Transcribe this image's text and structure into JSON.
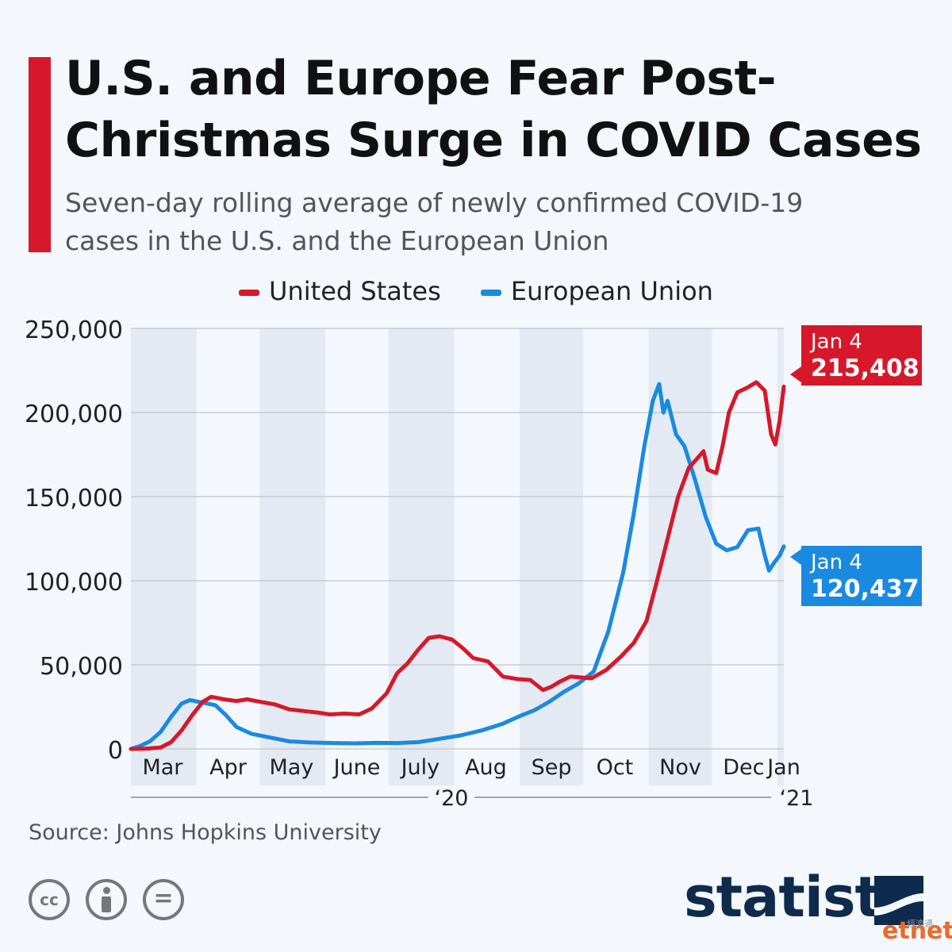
{
  "header": {
    "title": "U.S. and Europe Fear Post-Christmas Surge in COVID Cases",
    "subtitle": "Seven-day rolling average of newly confirmed COVID-19\ncases in the U.S. and the European Union"
  },
  "colors": {
    "us": "#d7182a",
    "eu": "#1a8ae0",
    "accent": "#d7182a",
    "brand": "#0e2a4c"
  },
  "chart_data": {
    "type": "line",
    "title": "U.S. and Europe Fear Post-Christmas Surge in COVID Cases",
    "subtitle": "Seven-day rolling average of newly confirmed COVID-19 cases in the U.S. and the European Union",
    "legend_position": "top-center",
    "grid": true,
    "x_range": [
      "2020-03-01",
      "2021-01-04"
    ],
    "ylim": [
      0,
      250000
    ],
    "y_ticks": [
      "0",
      "50,000",
      "100,000",
      "150,000",
      "200,000",
      "250,000"
    ],
    "y_tick_values": [
      0,
      50000,
      100000,
      150000,
      200000,
      250000
    ],
    "x_tick_labels": [
      "Mar",
      "Apr",
      "May",
      "June",
      "July",
      "Aug",
      "Sep",
      "Oct",
      "Nov",
      "Dec",
      "Jan"
    ],
    "x_tick_dates": [
      "2020-03-16",
      "2020-04-16",
      "2020-05-16",
      "2020-06-16",
      "2020-07-16",
      "2020-08-16",
      "2020-09-16",
      "2020-10-16",
      "2020-11-16",
      "2020-12-16",
      "2021-01-04"
    ],
    "year_labels": [
      "‘20",
      "‘21"
    ],
    "series": [
      {
        "name": "United States",
        "points": [
          [
            "2020-03-01",
            0
          ],
          [
            "2020-03-08",
            100
          ],
          [
            "2020-03-15",
            800
          ],
          [
            "2020-03-20",
            4000
          ],
          [
            "2020-03-25",
            11000
          ],
          [
            "2020-03-30",
            20000
          ],
          [
            "2020-04-04",
            28000
          ],
          [
            "2020-04-08",
            31000
          ],
          [
            "2020-04-14",
            29500
          ],
          [
            "2020-04-20",
            28500
          ],
          [
            "2020-04-25",
            29500
          ],
          [
            "2020-05-01",
            28000
          ],
          [
            "2020-05-08",
            26500
          ],
          [
            "2020-05-15",
            23500
          ],
          [
            "2020-05-22",
            22500
          ],
          [
            "2020-05-29",
            21500
          ],
          [
            "2020-06-03",
            20500
          ],
          [
            "2020-06-10",
            21000
          ],
          [
            "2020-06-17",
            20500
          ],
          [
            "2020-06-23",
            24000
          ],
          [
            "2020-06-30",
            33000
          ],
          [
            "2020-07-05",
            45000
          ],
          [
            "2020-07-10",
            51000
          ],
          [
            "2020-07-15",
            59000
          ],
          [
            "2020-07-20",
            66000
          ],
          [
            "2020-07-25",
            67000
          ],
          [
            "2020-07-31",
            65000
          ],
          [
            "2020-08-05",
            60000
          ],
          [
            "2020-08-10",
            54000
          ],
          [
            "2020-08-17",
            52000
          ],
          [
            "2020-08-24",
            43000
          ],
          [
            "2020-08-31",
            41500
          ],
          [
            "2020-09-06",
            41000
          ],
          [
            "2020-09-12",
            35000
          ],
          [
            "2020-09-16",
            37000
          ],
          [
            "2020-09-20",
            40000
          ],
          [
            "2020-09-25",
            43000
          ],
          [
            "2020-09-30",
            42500
          ],
          [
            "2020-10-05",
            42000
          ],
          [
            "2020-10-12",
            47000
          ],
          [
            "2020-10-19",
            55000
          ],
          [
            "2020-10-25",
            63000
          ],
          [
            "2020-10-31",
            76000
          ],
          [
            "2020-11-05",
            100000
          ],
          [
            "2020-11-10",
            125000
          ],
          [
            "2020-11-15",
            150000
          ],
          [
            "2020-11-20",
            167000
          ],
          [
            "2020-11-27",
            177000
          ],
          [
            "2020-11-29",
            166000
          ],
          [
            "2020-12-03",
            164000
          ],
          [
            "2020-12-06",
            180000
          ],
          [
            "2020-12-09",
            200000
          ],
          [
            "2020-12-13",
            212000
          ],
          [
            "2020-12-18",
            215000
          ],
          [
            "2020-12-22",
            218000
          ],
          [
            "2020-12-26",
            213000
          ],
          [
            "2020-12-29",
            187000
          ],
          [
            "2020-12-31",
            181000
          ],
          [
            "2021-01-02",
            195000
          ],
          [
            "2021-01-04",
            215408
          ]
        ],
        "callout": {
          "date_label": "Jan 4",
          "value_label": "215,408"
        }
      },
      {
        "name": "European Union",
        "points": [
          [
            "2020-03-01",
            0
          ],
          [
            "2020-03-05",
            1500
          ],
          [
            "2020-03-10",
            4500
          ],
          [
            "2020-03-15",
            10000
          ],
          [
            "2020-03-20",
            19000
          ],
          [
            "2020-03-25",
            27000
          ],
          [
            "2020-03-29",
            29000
          ],
          [
            "2020-04-04",
            27500
          ],
          [
            "2020-04-10",
            26000
          ],
          [
            "2020-04-15",
            20000
          ],
          [
            "2020-04-20",
            13000
          ],
          [
            "2020-04-27",
            9000
          ],
          [
            "2020-05-05",
            7000
          ],
          [
            "2020-05-15",
            4500
          ],
          [
            "2020-05-25",
            3800
          ],
          [
            "2020-06-05",
            3500
          ],
          [
            "2020-06-15",
            3300
          ],
          [
            "2020-06-25",
            3600
          ],
          [
            "2020-07-05",
            3500
          ],
          [
            "2020-07-15",
            4000
          ],
          [
            "2020-07-25",
            6000
          ],
          [
            "2020-08-04",
            8000
          ],
          [
            "2020-08-14",
            11000
          ],
          [
            "2020-08-24",
            15000
          ],
          [
            "2020-09-01",
            19500
          ],
          [
            "2020-09-08",
            23000
          ],
          [
            "2020-09-15",
            28000
          ],
          [
            "2020-09-22",
            34000
          ],
          [
            "2020-09-29",
            39000
          ],
          [
            "2020-10-06",
            46000
          ],
          [
            "2020-10-13",
            70000
          ],
          [
            "2020-10-20",
            105000
          ],
          [
            "2020-10-25",
            140000
          ],
          [
            "2020-10-30",
            180000
          ],
          [
            "2020-11-03",
            207000
          ],
          [
            "2020-11-06",
            217000
          ],
          [
            "2020-11-08",
            200000
          ],
          [
            "2020-11-10",
            207000
          ],
          [
            "2020-11-14",
            187000
          ],
          [
            "2020-11-18",
            180000
          ],
          [
            "2020-11-23",
            160000
          ],
          [
            "2020-11-28",
            138000
          ],
          [
            "2020-12-03",
            122000
          ],
          [
            "2020-12-08",
            118000
          ],
          [
            "2020-12-13",
            120000
          ],
          [
            "2020-12-18",
            130000
          ],
          [
            "2020-12-23",
            131000
          ],
          [
            "2020-12-26",
            115000
          ],
          [
            "2020-12-28",
            106000
          ],
          [
            "2020-12-30",
            110000
          ],
          [
            "2021-01-02",
            115000
          ],
          [
            "2021-01-04",
            120437
          ]
        ],
        "callout": {
          "date_label": "Jan 4",
          "value_label": "120,437"
        }
      }
    ]
  },
  "source": "Source: Johns Hopkins University",
  "license_icons": [
    "cc-icon",
    "attribution-icon",
    "no-derivatives-icon"
  ],
  "license_cc_text": "cc",
  "license_nd_text": "=",
  "brand": {
    "name": "statista",
    "icon": "statista-logo-icon"
  },
  "watermark": {
    "text": "etnet",
    "subtext": "經濟通"
  }
}
